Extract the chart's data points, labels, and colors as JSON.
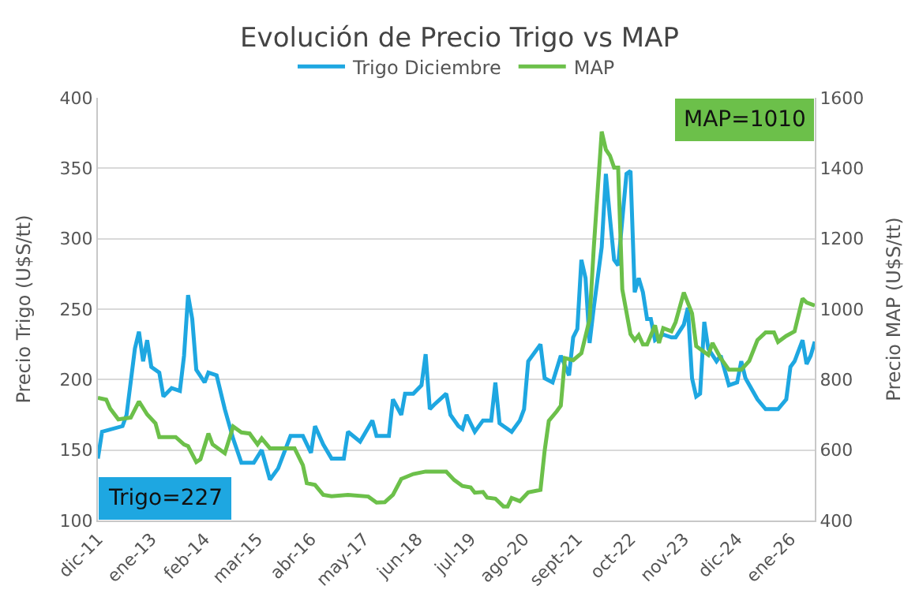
{
  "chart_data": {
    "type": "line",
    "title": "Evolución de Precio Trigo vs MAP",
    "ylabel": "Precio Trigo (U$S/tt)",
    "y2label": "Precio MAP (U$S/tt)",
    "xlim": [
      "2011-12",
      "2026-07"
    ],
    "xticks": [
      {
        "value": "2011-12",
        "label": "dic-11"
      },
      {
        "value": "2013-01",
        "label": "ene-13"
      },
      {
        "value": "2014-02",
        "label": "feb-14"
      },
      {
        "value": "2015-03",
        "label": "mar-15"
      },
      {
        "value": "2016-04",
        "label": "abr-16"
      },
      {
        "value": "2017-05",
        "label": "may-17"
      },
      {
        "value": "2018-06",
        "label": "jun-18"
      },
      {
        "value": "2019-07",
        "label": "jul-19"
      },
      {
        "value": "2020-08",
        "label": "ago-20"
      },
      {
        "value": "2021-09",
        "label": "sept-21"
      },
      {
        "value": "2022-10",
        "label": "oct-22"
      },
      {
        "value": "2023-11",
        "label": "nov-23"
      },
      {
        "value": "2024-12",
        "label": "dic-24"
      },
      {
        "value": "2026-01",
        "label": "ene-26"
      }
    ],
    "ylim": [
      100,
      400
    ],
    "yticks": [
      100,
      150,
      200,
      250,
      300,
      350,
      400
    ],
    "y2lim": [
      400,
      1600
    ],
    "y2ticks": [
      400,
      600,
      800,
      1000,
      1200,
      1400,
      1600
    ],
    "grid": "y",
    "legend": "top",
    "line_style": "solid",
    "marker": "none",
    "series": [
      {
        "name": "Trigo Diciembre",
        "color": "#1ea7e1",
        "x": [
          "2011-12",
          "2012-01",
          "2012-06",
          "2012-07",
          "2012-09",
          "2012-10",
          "2012-11",
          "2012-12",
          "2013-01",
          "2013-03",
          "2013-04",
          "2013-06",
          "2013-08",
          "2013-09",
          "2013-10",
          "2013-11",
          "2013-12",
          "2014-02",
          "2014-03",
          "2014-05",
          "2014-07",
          "2014-09",
          "2014-11",
          "2015-02",
          "2015-04",
          "2015-06",
          "2015-08",
          "2015-11",
          "2016-02",
          "2016-04",
          "2016-05",
          "2016-07",
          "2016-09",
          "2016-12",
          "2017-01",
          "2017-04",
          "2017-07",
          "2017-08",
          "2017-11",
          "2017-12",
          "2018-02",
          "2018-03",
          "2018-05",
          "2018-07",
          "2018-08",
          "2018-09",
          "2018-10",
          "2019-01",
          "2019-02",
          "2019-04",
          "2019-05",
          "2019-06",
          "2019-07",
          "2019-08",
          "2019-10",
          "2019-12",
          "2020-01",
          "2020-02",
          "2020-03",
          "2020-05",
          "2020-07",
          "2020-08",
          "2020-09",
          "2020-12",
          "2021-01",
          "2021-03",
          "2021-05",
          "2021-07",
          "2021-08",
          "2021-09",
          "2021-10",
          "2021-11",
          "2021-12",
          "2022-01",
          "2022-03",
          "2022-04",
          "2022-05",
          "2022-06",
          "2022-07",
          "2022-09",
          "2022-10",
          "2022-11",
          "2022-12",
          "2023-01",
          "2023-02",
          "2023-03",
          "2023-04",
          "2023-06",
          "2023-08",
          "2023-09",
          "2023-11",
          "2023-12",
          "2024-01",
          "2024-02",
          "2024-03",
          "2024-04",
          "2024-05",
          "2024-07",
          "2024-08",
          "2024-10",
          "2024-12",
          "2025-01",
          "2025-02",
          "2025-05",
          "2025-07",
          "2025-10",
          "2025-12",
          "2026-01",
          "2026-02",
          "2026-04",
          "2026-05",
          "2026-06",
          "2026-07"
        ],
        "values": [
          144,
          163,
          167,
          175,
          222,
          234,
          213,
          228,
          209,
          205,
          188,
          194,
          192,
          217,
          260,
          243,
          207,
          198,
          205,
          203,
          179,
          158,
          141,
          141,
          150,
          129,
          137,
          160,
          160,
          148,
          167,
          154,
          144,
          144,
          163,
          156,
          171,
          160,
          160,
          186,
          175,
          190,
          190,
          196,
          218,
          179,
          182,
          190,
          175,
          167,
          165,
          175,
          169,
          163,
          171,
          171,
          198,
          169,
          167,
          163,
          171,
          179,
          213,
          225,
          201,
          198,
          217,
          203,
          230,
          236,
          285,
          272,
          226,
          251,
          294,
          346,
          315,
          285,
          281,
          346,
          348,
          262,
          272,
          262,
          243,
          243,
          228,
          232,
          230,
          230,
          239,
          251,
          201,
          188,
          190,
          241,
          222,
          213,
          217,
          196,
          198,
          213,
          201,
          186,
          179,
          179,
          186,
          209,
          213,
          228,
          211,
          217,
          227
        ]
      },
      {
        "name": "MAP",
        "color": "#6cc04a",
        "axis": "y2",
        "x": [
          "2011-12",
          "2012-02",
          "2012-03",
          "2012-05",
          "2012-08",
          "2012-10",
          "2012-12",
          "2013-02",
          "2013-03",
          "2013-07",
          "2013-09",
          "2013-10",
          "2013-12",
          "2014-01",
          "2014-03",
          "2014-04",
          "2014-07",
          "2014-09",
          "2014-11",
          "2015-01",
          "2015-03",
          "2015-04",
          "2015-06",
          "2015-12",
          "2016-02",
          "2016-03",
          "2016-05",
          "2016-07",
          "2016-09",
          "2017-01",
          "2017-06",
          "2017-08",
          "2017-10",
          "2017-12",
          "2018-02",
          "2018-05",
          "2018-08",
          "2019-01",
          "2019-03",
          "2019-05",
          "2019-07",
          "2019-08",
          "2019-10",
          "2019-11",
          "2020-01",
          "2020-03",
          "2020-04",
          "2020-05",
          "2020-07",
          "2020-09",
          "2020-12",
          "2021-01",
          "2021-02",
          "2021-04",
          "2021-05",
          "2021-06",
          "2021-08",
          "2021-10",
          "2021-12",
          "2022-01",
          "2022-03",
          "2022-04",
          "2022-05",
          "2022-06",
          "2022-07",
          "2022-08",
          "2022-10",
          "2022-11",
          "2022-12",
          "2023-01",
          "2023-02",
          "2023-04",
          "2023-05",
          "2023-06",
          "2023-08",
          "2023-09",
          "2023-11",
          "2024-01",
          "2024-02",
          "2024-05",
          "2024-06",
          "2024-08",
          "2024-10",
          "2025-01",
          "2025-03",
          "2025-05",
          "2025-07",
          "2025-09",
          "2025-10",
          "2025-12",
          "2026-02",
          "2026-04",
          "2026-05",
          "2026-07"
        ],
        "values": [
          748,
          743,
          718,
          687,
          692,
          738,
          701,
          676,
          637,
          637,
          616,
          611,
          566,
          574,
          647,
          616,
          591,
          667,
          650,
          647,
          616,
          633,
          605,
          605,
          557,
          506,
          501,
          473,
          469,
          473,
          468,
          451,
          452,
          473,
          518,
          532,
          539,
          539,
          515,
          498,
          494,
          479,
          481,
          465,
          462,
          440,
          440,
          464,
          455,
          480,
          487,
          598,
          683,
          710,
          726,
          861,
          855,
          875,
          971,
          1174,
          1504,
          1453,
          1436,
          1402,
          1402,
          1056,
          929,
          912,
          926,
          900,
          900,
          954,
          904,
          946,
          937,
          963,
          1047,
          988,
          895,
          870,
          904,
          861,
          828,
          828,
          853,
          912,
          934,
          934,
          907,
          924,
          937,
          1030,
          1019,
          1010
        ]
      }
    ],
    "annotations": [
      "Trigo=227",
      "MAP=1010"
    ]
  }
}
